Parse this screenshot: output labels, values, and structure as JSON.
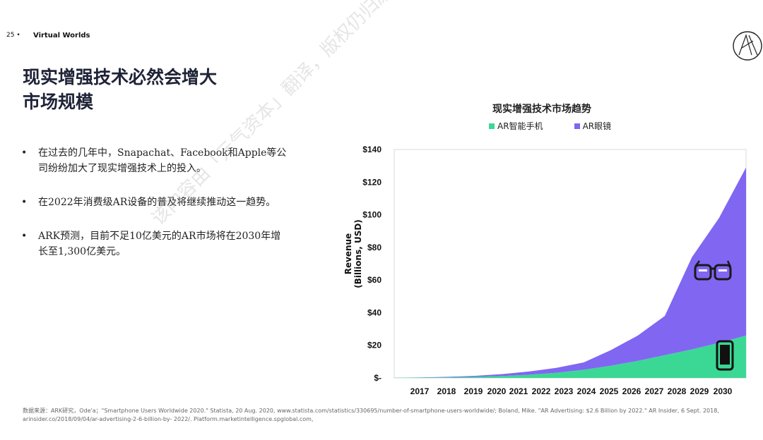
{
  "header": {
    "page_number": "25 •",
    "section": "Virtual Worlds"
  },
  "title_lines": [
    "现实增强技术必然会增大",
    "市场规模"
  ],
  "bullets": [
    "在过去的几年中，Snapachat、Facebook和Apple等公司纷纷加大了现实增强技术上的投入。",
    "在2022年消费级AR设备的普及将继续推动这一趋势。",
    "ARK预测，目前不足10亿美元的AR市场将在2030年增长至1,300亿美元。"
  ],
  "bullet_marker": "•",
  "watermark": "该内容由「元气资本」翻译，版权仍归原机构所有",
  "footnote": "数据来源：ARK研究，Ode'a；\"Smartphone Users Worldwide 2020.\" Statista, 20 Aug. 2020, www.statista.com/statistics/330695/number-of-smartphone-users-worldwide/; Boland, Mike. \"AR Advertising: $2.6 Billion by 2022.\" AR Insider, 6 Sept. 2018, arinsider.co/2018/09/04/ar-advertising-2-6-billion-by- 2022/. Platform.marketintelligence.spglobal.com,",
  "icons": [
    "ark-logo-icon",
    "ar-glasses-icon",
    "smartphone-icon"
  ],
  "chart_data": {
    "type": "area",
    "stacked": true,
    "title": "现实增强技术市场趋势",
    "ylabel": "Revenue (Billions, USD)",
    "xlabel": "",
    "categories": [
      "2017",
      "2018",
      "2019",
      "2020",
      "2021",
      "2022",
      "2023",
      "2024",
      "2025",
      "2026",
      "2027",
      "2028",
      "2029",
      "2030"
    ],
    "ylim": [
      0,
      140
    ],
    "yticks": [
      0,
      20,
      40,
      60,
      80,
      100,
      120,
      140
    ],
    "ytick_labels": [
      "$-",
      "$20",
      "$40",
      "$60",
      "$80",
      "$100",
      "$120",
      "$140"
    ],
    "legend_position": "top",
    "series": [
      {
        "name": "AR智能手机",
        "color": "#3ad894",
        "values": [
          0.1,
          0.2,
          0.4,
          0.7,
          1.2,
          2.0,
          3.2,
          5.0,
          7.5,
          10.5,
          14.0,
          17.5,
          21.5,
          26.0
        ]
      },
      {
        "name": "AR眼镜",
        "color": "#8166f2",
        "values": [
          0,
          0.1,
          0.3,
          0.6,
          1.2,
          2.0,
          3.0,
          4.5,
          9.5,
          15.5,
          24.0,
          56.5,
          76.5,
          103.0
        ]
      }
    ]
  }
}
